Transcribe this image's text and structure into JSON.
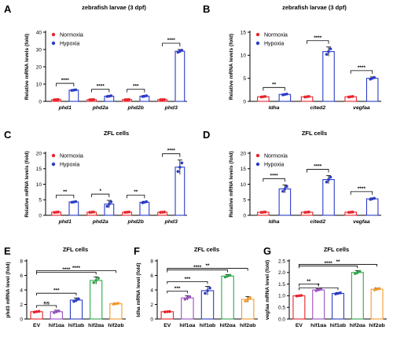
{
  "chart_data": [
    {
      "panel": "A",
      "type": "bar",
      "title": "zebrafish larvae (3 dpf)",
      "ylabel": "Relative mRNA levels (fold)",
      "ylim": [
        0,
        40
      ],
      "yticks": [
        "0",
        "10",
        "20",
        "30",
        "40"
      ],
      "categories": [
        "phd1",
        "phd2a",
        "phd2b",
        "phd3"
      ],
      "italic_categories": true,
      "series": [
        {
          "name": "Normoxia",
          "color": "#e8242b",
          "values": [
            1.0,
            1.0,
            1.0,
            1.0
          ]
        },
        {
          "name": "Hypoxia",
          "color": "#2b3cc8",
          "values": [
            6.5,
            3.0,
            3.0,
            29.0
          ]
        }
      ],
      "errors": [
        [
          0.1,
          0.1,
          0.1,
          0.1
        ],
        [
          0.3,
          0.4,
          0.4,
          1.0
        ]
      ],
      "significance": [
        "****",
        "****",
        "***",
        "****"
      ],
      "legend": "top-left"
    },
    {
      "panel": "B",
      "type": "bar",
      "title": "zebrafish larvae (3 dpf)",
      "ylabel": "Relative mRNA levels (fold)",
      "ylim": [
        0,
        15
      ],
      "yticks": [
        "0",
        "5",
        "10",
        "15"
      ],
      "categories": [
        "ldha",
        "cited2",
        "vegfaa"
      ],
      "italic_categories": true,
      "series": [
        {
          "name": "Normoxia",
          "color": "#e8242b",
          "values": [
            1.0,
            1.0,
            1.0
          ]
        },
        {
          "name": "Hypoxia",
          "color": "#2b3cc8",
          "values": [
            1.5,
            10.8,
            5.0
          ]
        }
      ],
      "errors": [
        [
          0.1,
          0.1,
          0.1
        ],
        [
          0.15,
          1.0,
          0.3
        ]
      ],
      "significance": [
        "**",
        "****",
        "****"
      ],
      "legend": "top-left"
    },
    {
      "panel": "C",
      "type": "bar",
      "title": "ZFL cells",
      "ylabel": "Relative mRNA levels (fold)",
      "ylim": [
        0,
        20
      ],
      "yticks": [
        "0",
        "5",
        "10",
        "15",
        "20"
      ],
      "categories": [
        "phd1",
        "phd2a",
        "phd2b",
        "phd3"
      ],
      "italic_categories": true,
      "series": [
        {
          "name": "Normoxia",
          "color": "#e8242b",
          "values": [
            1.0,
            1.0,
            1.0,
            1.0
          ]
        },
        {
          "name": "Hypoxia",
          "color": "#2b3cc8",
          "values": [
            4.3,
            3.6,
            4.2,
            15.5
          ]
        }
      ],
      "errors": [
        [
          0.1,
          0.1,
          0.1,
          0.1
        ],
        [
          0.2,
          1.2,
          0.3,
          2.3
        ]
      ],
      "significance": [
        "**",
        "*",
        "**",
        "****"
      ],
      "legend": "top-left"
    },
    {
      "panel": "D",
      "type": "bar",
      "title": "ZFL cells",
      "ylabel": "Relative mRNA levels (fold)",
      "ylim": [
        0,
        20
      ],
      "yticks": [
        "0",
        "5",
        "10",
        "15",
        "20"
      ],
      "categories": [
        "ldha",
        "cited2",
        "vegfaa"
      ],
      "italic_categories": true,
      "series": [
        {
          "name": "Normoxia",
          "color": "#e8242b",
          "values": [
            1.0,
            1.0,
            1.0
          ]
        },
        {
          "name": "Hypoxia",
          "color": "#2b3cc8",
          "values": [
            8.5,
            11.5,
            5.3
          ]
        }
      ],
      "errors": [
        [
          0.1,
          0.1,
          0.1
        ],
        [
          1.3,
          1.3,
          0.3
        ]
      ],
      "significance": [
        "****",
        "****",
        "****"
      ],
      "legend": "top-left"
    },
    {
      "panel": "E",
      "type": "bar",
      "title": "ZFL cells",
      "ylabel": "phd3 mRNA level (fold)",
      "ylim": [
        0,
        8
      ],
      "yticks": [
        "0",
        "2",
        "4",
        "6",
        "8"
      ],
      "categories": [
        "EV",
        "hif1αa",
        "hif1αb",
        "hif2αa",
        "hif2αb"
      ],
      "italic_categories": false,
      "colors": [
        "#e8242b",
        "#9c4fc2",
        "#2b3cc8",
        "#2fa64a",
        "#f39a2b"
      ],
      "values": [
        1.0,
        1.0,
        2.6,
        5.3,
        2.1
      ],
      "errors": [
        0.1,
        0.2,
        0.3,
        0.5,
        0.1
      ],
      "comparisons": [
        {
          "from": "EV",
          "to": "hif1αa",
          "label": "ns"
        },
        {
          "from": "EV",
          "to": "hif1αb",
          "label": "***"
        },
        {
          "from": "EV",
          "to": "hif2αa",
          "label": "****"
        },
        {
          "from": "EV",
          "to": "hif2αb",
          "label": "****"
        }
      ]
    },
    {
      "panel": "F",
      "type": "bar",
      "title": "ZFL cells",
      "ylabel": "ldha mRNA level (fold)",
      "ylim": [
        0,
        8
      ],
      "yticks": [
        "0",
        "2",
        "4",
        "6",
        "8"
      ],
      "categories": [
        "EV",
        "hif1αa",
        "hif1αb",
        "hif2αa",
        "hif2αb"
      ],
      "italic_categories": false,
      "colors": [
        "#e8242b",
        "#9c4fc2",
        "#2b3cc8",
        "#2fa64a",
        "#f39a2b"
      ],
      "values": [
        1.0,
        2.9,
        3.9,
        5.9,
        2.7
      ],
      "errors": [
        0.05,
        0.3,
        0.6,
        0.2,
        0.4
      ],
      "comparisons": [
        {
          "from": "EV",
          "to": "hif1αa",
          "label": "***"
        },
        {
          "from": "EV",
          "to": "hif1αb",
          "label": "***"
        },
        {
          "from": "EV",
          "to": "hif2αa",
          "label": "****"
        },
        {
          "from": "EV",
          "to": "hif2αb",
          "label": "**"
        }
      ]
    },
    {
      "panel": "G",
      "type": "bar",
      "title": "ZFL cells",
      "ylabel": "vegfaa mRNA level (fold)",
      "ylim": [
        0,
        2.5
      ],
      "yticks": [
        "0.0",
        "0.5",
        "1.0",
        "1.5",
        "2.0",
        "2.5"
      ],
      "categories": [
        "EV",
        "hif1αa",
        "hif1αb",
        "hif2αa",
        "hif2αb"
      ],
      "italic_categories": false,
      "colors": [
        "#e8242b",
        "#9c4fc2",
        "#2b3cc8",
        "#2fa64a",
        "#f39a2b"
      ],
      "values": [
        1.0,
        1.25,
        1.1,
        2.0,
        1.28
      ],
      "errors": [
        0.02,
        0.05,
        0.04,
        0.08,
        0.05
      ],
      "comparisons": [
        {
          "from": "EV",
          "to": "hif1αa",
          "label": "**"
        },
        {
          "from": "EV",
          "to": "hif1αb",
          "label": "*"
        },
        {
          "from": "EV",
          "to": "hif2αa",
          "label": "****"
        },
        {
          "from": "EV",
          "to": "hif2αb",
          "label": "**"
        }
      ]
    }
  ]
}
